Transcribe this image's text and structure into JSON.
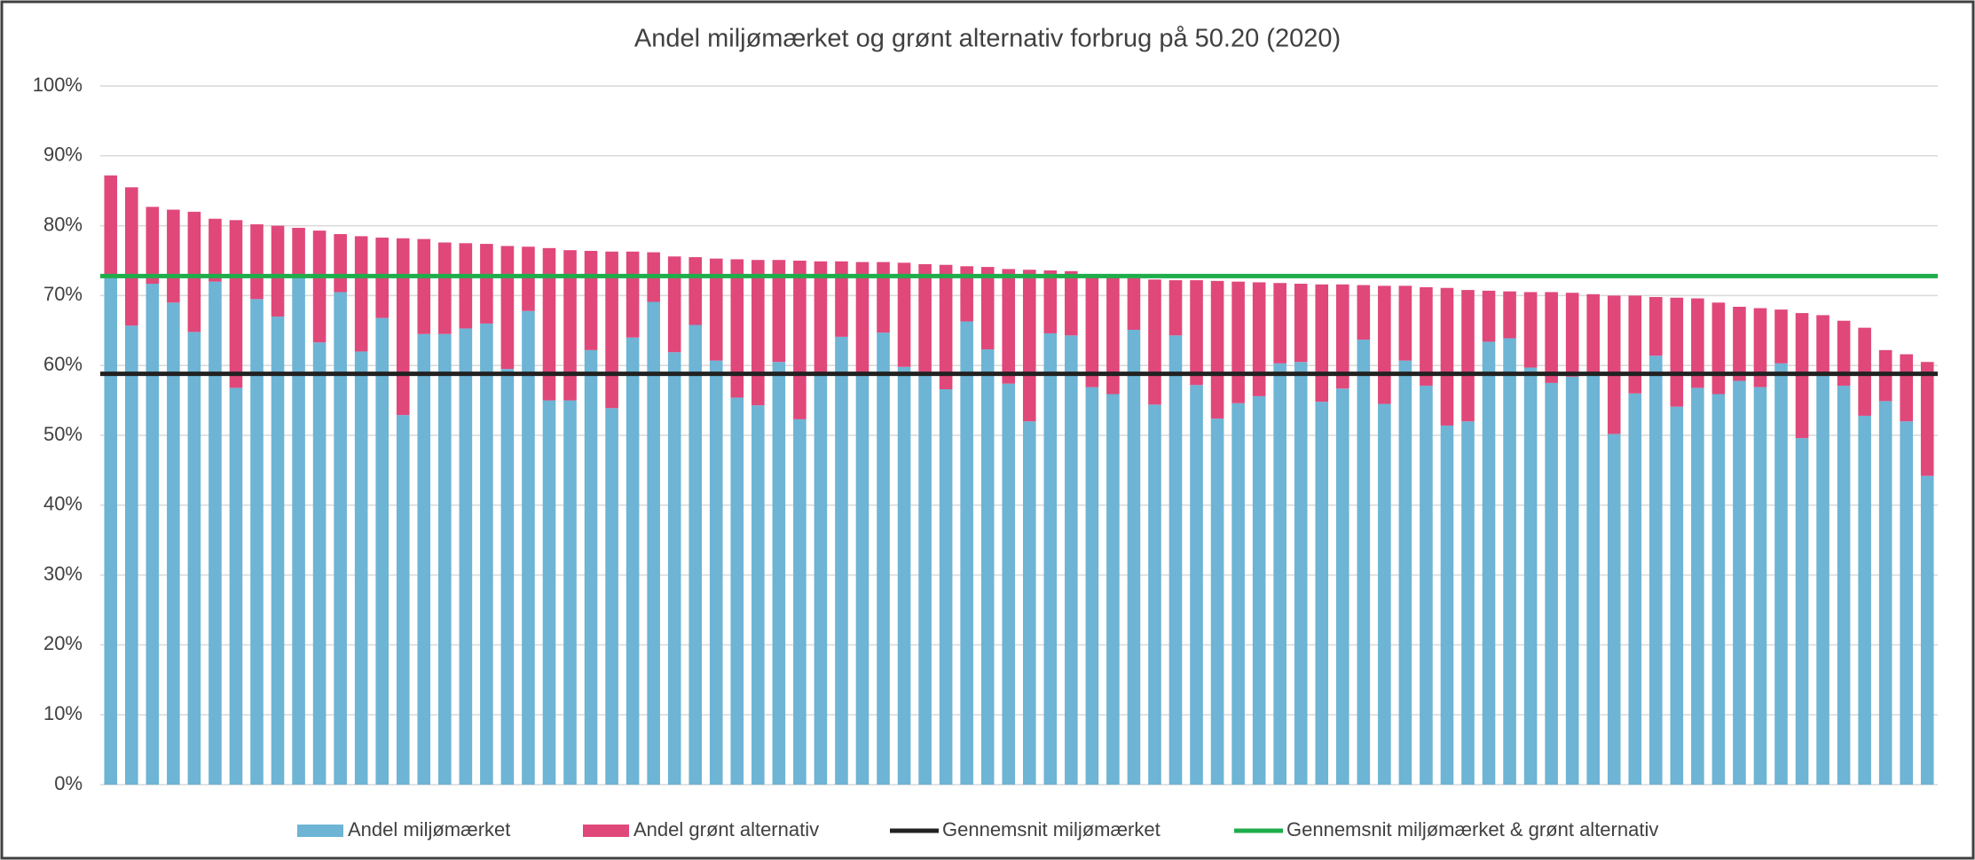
{
  "chart_data": {
    "type": "bar",
    "stacked": true,
    "title": "Andel miljømærket og grønt alternativ forbrug på 50.20 (2020)",
    "categories": [
      null,
      null,
      null,
      null,
      null,
      null,
      null,
      null,
      null,
      null,
      null,
      null,
      null,
      null,
      null,
      null,
      null,
      null,
      null,
      null,
      null,
      null,
      null,
      null,
      null,
      null,
      null,
      null,
      null,
      null,
      null,
      null,
      null,
      null,
      null,
      null,
      null,
      null,
      null,
      null,
      null,
      null,
      null,
      null,
      null,
      null,
      null,
      null,
      null,
      null,
      null,
      null,
      null,
      null,
      null,
      null,
      null,
      null,
      null,
      null,
      null,
      null,
      null,
      null,
      null,
      null,
      null,
      null,
      null,
      null,
      null,
      null,
      null,
      null,
      null,
      null,
      null,
      null,
      null,
      null,
      null,
      null,
      null,
      null,
      null,
      null,
      null,
      null
    ],
    "series": [
      {
        "name": "Andel miljømærket",
        "color": "#6db4d5",
        "values": [
          72.5,
          65.7,
          71.7,
          69,
          64.8,
          72,
          56.8,
          69.5,
          67,
          72.5,
          63.3,
          70.5,
          62,
          66.8,
          52.9,
          64.5,
          64.5,
          65.3,
          66,
          59.5,
          67.8,
          55,
          55,
          62.2,
          53.9,
          64,
          69.1,
          61.9,
          65.8,
          60.7,
          55.4,
          54.3,
          60.5,
          52.3,
          58.9,
          64.1,
          59,
          64.7,
          59.8,
          59.1,
          56.6,
          66.3,
          62.3,
          57.4,
          52,
          64.6,
          64.3,
          56.9,
          55.9,
          65.1,
          54.4,
          64.3,
          57.2,
          52.4,
          54.6,
          55.6,
          60.3,
          60.5,
          54.8,
          56.7,
          63.7,
          54.5,
          60.7,
          57.1,
          51.4,
          52,
          63.4,
          63.9,
          59.7,
          57.5,
          58.4,
          58.7,
          50.2,
          56,
          61.4,
          54.1,
          56.8,
          55.9,
          57.8,
          56.9,
          60.3,
          49.6,
          58.9,
          57.1,
          52.8,
          54.9,
          52,
          44.2
        ]
      },
      {
        "name": "Andel grønt alternativ",
        "color": "#e0487a",
        "values": [
          14.7,
          19.8,
          11.0,
          13.3,
          17.2,
          9.0,
          24.0,
          10.7,
          13.0,
          7.2,
          16.0,
          8.3,
          16.5,
          11.5,
          25.3,
          13.6,
          13.1,
          12.2,
          11.4,
          17.6,
          9.2,
          21.8,
          21.5,
          14.2,
          22.4,
          12.3,
          7.1,
          13.7,
          9.7,
          14.6,
          19.8,
          20.8,
          14.6,
          22.7,
          16.0,
          10.8,
          15.8,
          10.1,
          14.9,
          15.4,
          17.8,
          7.9,
          11.8,
          16.4,
          21.7,
          9.0,
          9.2,
          15.9,
          16.7,
          7.4,
          17.9,
          7.9,
          15.0,
          19.7,
          17.4,
          16.3,
          11.5,
          11.2,
          16.8,
          14.9,
          7.8,
          16.9,
          10.7,
          14.1,
          19.7,
          18.8,
          7.3,
          6.7,
          10.8,
          13.0,
          12.0,
          11.5,
          19.8,
          14.0,
          8.4,
          15.6,
          12.8,
          13.1,
          10.6,
          11.3,
          7.7,
          17.9,
          8.3,
          9.3,
          12.6,
          7.3,
          9.6,
          16.3
        ]
      }
    ],
    "reference_lines": [
      {
        "name": "Gennemsnit miljømærket",
        "color": "#222222",
        "value": 58.8
      },
      {
        "name": "Gennemsnit miljømærket & grønt alternativ",
        "color": "#1fad4b",
        "value": 72.8
      }
    ],
    "ylim": [
      0,
      100
    ],
    "yticks": [
      {
        "value": 0,
        "label": "0%"
      },
      {
        "value": 10,
        "label": "10%"
      },
      {
        "value": 20,
        "label": "20%"
      },
      {
        "value": 30,
        "label": "30%"
      },
      {
        "value": 40,
        "label": "40%"
      },
      {
        "value": 50,
        "label": "50%"
      },
      {
        "value": 60,
        "label": "60%"
      },
      {
        "value": 70,
        "label": "70%"
      },
      {
        "value": 80,
        "label": "80%"
      },
      {
        "value": 90,
        "label": "90%"
      },
      {
        "value": 100,
        "label": "100%"
      }
    ],
    "grid": true,
    "legend": "bottom"
  }
}
